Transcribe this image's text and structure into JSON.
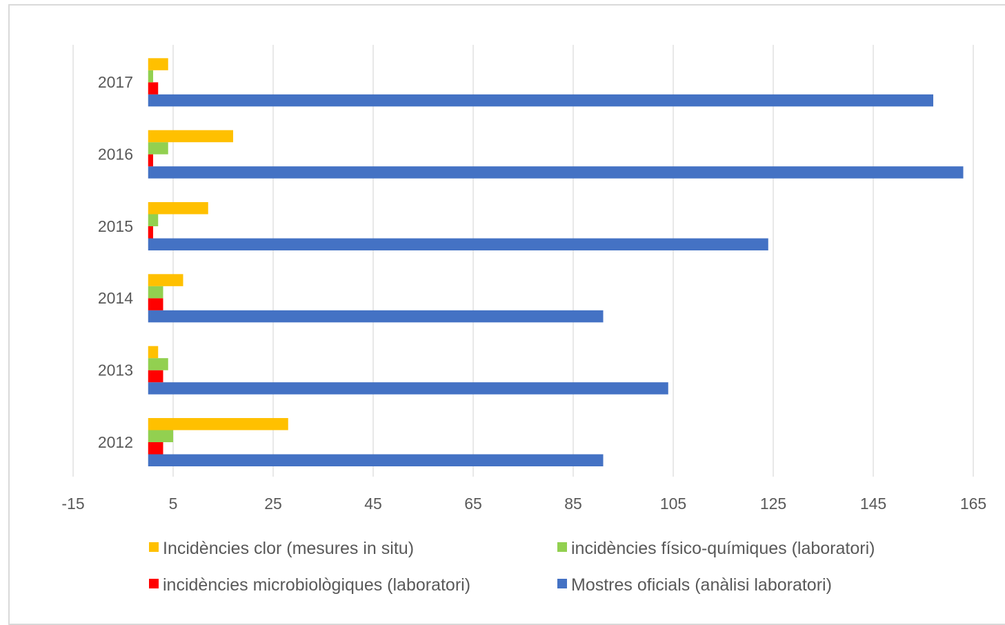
{
  "chart_data": {
    "type": "bar",
    "orientation": "horizontal",
    "title": "",
    "xlabel": "",
    "ylabel": "",
    "categories": [
      "2012",
      "2013",
      "2014",
      "2015",
      "2016",
      "2017"
    ],
    "xlim": [
      -15,
      165
    ],
    "xticks": [
      "-15",
      "5",
      "25",
      "45",
      "65",
      "85",
      "105",
      "125",
      "145",
      "165"
    ],
    "grid": true,
    "legend_position": "bottom",
    "series": [
      {
        "name": "Mostres oficials (anàlisi laboratori)",
        "color": "#4472c4",
        "values": [
          91,
          104,
          91,
          124,
          163,
          157
        ]
      },
      {
        "name": "incidències microbiològiques (laboratori)",
        "color": "#ff0000",
        "values": [
          3,
          3,
          3,
          1,
          1,
          2
        ]
      },
      {
        "name": "incidències físico-químiques (laboratori)",
        "color": "#92d050",
        "values": [
          5,
          4,
          3,
          2,
          4,
          1
        ]
      },
      {
        "name": "Incidències clor (mesures in situ)",
        "color": "#ffc000",
        "values": [
          28,
          2,
          7,
          12,
          17,
          4
        ]
      }
    ],
    "legend_order": [
      3,
      2,
      1,
      0
    ]
  }
}
